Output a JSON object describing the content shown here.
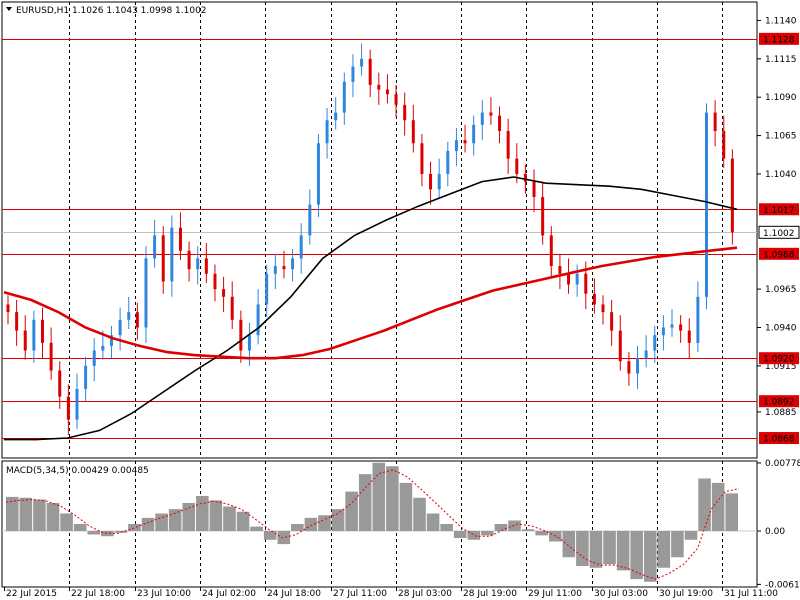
{
  "window": {
    "symbol_header": "EURUSD,H1  1.1026 1.1043 1.0998 1.1002",
    "header_arrow_icon": "triangle-down-icon"
  },
  "chart_data": [
    {
      "type": "candlestick",
      "title": "EURUSD,H1  1.1026 1.1043 1.0998 1.1002",
      "ohlc": {
        "open": 1.1026,
        "high": 1.1043,
        "low": 1.0998,
        "close": 1.1002
      },
      "ylim": [
        1.0855,
        1.1152
      ],
      "y_ticks": [
        "1.1140",
        "1.1115",
        "1.1090",
        "1.1065",
        "1.1040",
        "1.0965",
        "1.0940",
        "1.0915",
        "1.0885"
      ],
      "x_ticks": [
        "22 Jul 2015",
        "22 Jul 18:00",
        "23 Jul 10:00",
        "24 Jul 02:00",
        "24 Jul 18:00",
        "27 Jul 11:00",
        "28 Jul 03:00",
        "28 Jul 19:00",
        "29 Jul 11:00",
        "30 Jul 03:00",
        "30 Jul 19:00",
        "31 Jul 11:00"
      ],
      "levels": [
        1.1128,
        1.1017,
        1.0988,
        1.092,
        1.0892,
        1.0868
      ],
      "current_price": "1.1002",
      "close_series": [
        1.095,
        1.0938,
        1.0925,
        1.0945,
        1.093,
        1.0912,
        1.0895,
        1.088,
        1.09,
        1.0915,
        1.0925,
        1.0928,
        1.0935,
        1.0945,
        1.095,
        1.094,
        1.0985,
        1.1,
        1.097,
        1.1005,
        1.099,
        1.0978,
        1.0985,
        1.0975,
        1.0965,
        1.096,
        1.0945,
        1.0925,
        1.0935,
        1.0955,
        1.0975,
        1.098,
        1.0978,
        1.0985,
        1.1,
        1.102,
        1.106,
        1.1075,
        1.108,
        1.11,
        1.111,
        1.1115,
        1.1098,
        1.1095,
        1.1092,
        1.1085,
        1.1075,
        1.106,
        1.104,
        1.103,
        1.104,
        1.1055,
        1.1062,
        1.106,
        1.1072,
        1.108,
        1.1078,
        1.1068,
        1.105,
        1.104,
        1.1035,
        1.1025,
        1.1,
        1.098,
        1.0975,
        1.0968,
        1.0975,
        1.0962,
        1.0955,
        1.095,
        1.0938,
        1.0918,
        1.091,
        1.092,
        1.0925,
        1.0935,
        1.094,
        1.0942,
        1.0938,
        1.093,
        1.096,
        1.108,
        1.1068,
        1.105,
        1.1002
      ],
      "ma_fast": {
        "color": "#dd0000",
        "values": [
          1.0963,
          1.0958,
          1.095,
          1.094,
          1.0933,
          1.0928,
          1.0924,
          1.0922,
          1.0921,
          1.092,
          1.092,
          1.0922,
          1.0926,
          1.0932,
          1.0938,
          1.0945,
          1.0952,
          1.0958,
          1.0964,
          1.0968,
          1.0972,
          1.0976,
          1.098,
          1.0983,
          1.0986,
          1.0988,
          1.099,
          1.0992
        ]
      },
      "ma_slow": {
        "color": "#000000",
        "values": [
          1.0867,
          1.0867,
          1.0868,
          1.0873,
          1.0884,
          1.0898,
          1.0912,
          1.0925,
          1.094,
          1.096,
          1.0985,
          1.1,
          1.101,
          1.1019,
          1.1027,
          1.1035,
          1.1038,
          1.1034,
          1.1033,
          1.1032,
          1.103,
          1.1026,
          1.1022,
          1.1017
        ]
      },
      "candle_colors": {
        "up": "#2e86de",
        "down": "#dd0000"
      }
    },
    {
      "type": "bar",
      "title": "MACD(5,34,5) 0.00429 0.00485",
      "ylim": [
        -0.0064,
        0.008
      ],
      "y_ticks": [
        "0.00778",
        "0.00",
        "-0.0061"
      ],
      "histogram": [
        0.0039,
        0.0038,
        0.0036,
        0.0032,
        0.002,
        0.0008,
        -0.0004,
        -0.0006,
        -0.0002,
        0.0008,
        0.0015,
        0.002,
        0.0025,
        0.0032,
        0.004,
        0.0035,
        0.0028,
        0.0022,
        0.0005,
        -0.001,
        -0.0015,
        0.0008,
        0.0015,
        0.0018,
        0.0025,
        0.0045,
        0.0065,
        0.0078,
        0.0074,
        0.0055,
        0.0038,
        0.002,
        0.0008,
        -0.0008,
        -0.001,
        -0.0005,
        0.0008,
        0.0012,
        0.0002,
        -0.0005,
        -0.0012,
        -0.003,
        -0.004,
        -0.0042,
        -0.0038,
        -0.0045,
        -0.0055,
        -0.0058,
        -0.0042,
        -0.003,
        -0.001,
        0.006,
        0.0055,
        0.0043
      ],
      "signal": [
        0.0033,
        0.0035,
        0.0036,
        0.0034,
        0.0028,
        0.0018,
        0.0006,
        -0.0002,
        -0.0003,
        0.0002,
        0.0008,
        0.0014,
        0.0019,
        0.0025,
        0.0031,
        0.0034,
        0.0031,
        0.0025,
        0.0014,
        0.0002,
        -0.0008,
        -0.0004,
        0.0006,
        0.0013,
        0.002,
        0.0032,
        0.005,
        0.0066,
        0.007,
        0.0062,
        0.0048,
        0.0033,
        0.0018,
        0.0003,
        -0.0006,
        -0.0006,
        0.0002,
        0.0008,
        0.0006,
        0.0,
        -0.0008,
        -0.0021,
        -0.0033,
        -0.0039,
        -0.0039,
        -0.0043,
        -0.005,
        -0.0055,
        -0.0048,
        -0.0038,
        -0.002,
        0.0025,
        0.0045,
        0.00485
      ],
      "histogram_color": "#999999",
      "signal_color": "#dd0000"
    }
  ]
}
